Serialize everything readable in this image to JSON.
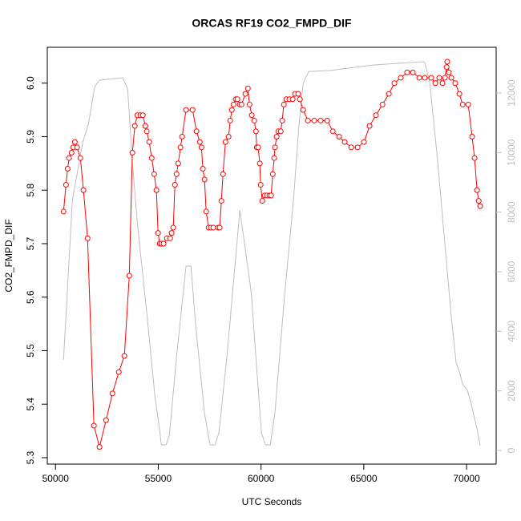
{
  "chart_data": {
    "type": "line",
    "title": "ORCAS RF19 CO2_FMPD_DIF",
    "xlabel": "UTC Seconds",
    "ylabel": "CO2_FMPD_DIF",
    "xlim": [
      49600,
      71440
    ],
    "xticks": [
      50000,
      55000,
      60000,
      65000,
      70000
    ],
    "ylim": [
      5.288,
      6.067
    ],
    "yticks": [
      5.3,
      5.4,
      5.5,
      5.6,
      5.7,
      5.8,
      5.9,
      {
        "value": 6,
        "label": "6.0"
      }
    ],
    "y2lim": [
      -457,
      13534
    ],
    "y2ticks": [
      0,
      2000,
      4000,
      6000,
      8000,
      10000,
      12000
    ],
    "y2color": "#bebebe",
    "series": [
      {
        "color": "#bebebe",
        "axis": "y2",
        "marker": "none",
        "x": [
          50390,
          50820,
          51330,
          51600,
          51910,
          52140,
          53270,
          53510,
          53740,
          53980,
          54480,
          54830,
          55070,
          55150,
          55380,
          55540,
          55890,
          56350,
          56590,
          56820,
          57250,
          57520,
          57760,
          57950,
          58350,
          58970,
          59520,
          60020,
          60220,
          60450,
          60680,
          61150,
          61580,
          61850,
          62050,
          62320,
          63300,
          65440,
          67900,
          67970,
          68210,
          68600,
          69260,
          69490,
          69650,
          69810,
          70040,
          70230,
          70550,
          70660
        ],
        "values": [
          3040,
          8394,
          10358,
          10950,
          12214,
          12430,
          12510,
          12133,
          9712,
          7641,
          4358,
          1856,
          673,
          188,
          188,
          511,
          3148,
          6188,
          6188,
          4197,
          1238,
          188,
          188,
          592,
          3228,
          8071,
          5327,
          592,
          188,
          188,
          1291,
          5246,
          8421,
          10950,
          12322,
          12725,
          12752,
          12940,
          13048,
          13021,
          12349,
          9658,
          4466,
          2959,
          2637,
          2233,
          2018,
          1560,
          592,
          161
        ]
      },
      {
        "color": "#ff0000",
        "marker": "circle",
        "x": [
          50390,
          50510,
          50590,
          50660,
          50780,
          50860,
          50940,
          51050,
          51210,
          51360,
          51560,
          51870,
          52140,
          52460,
          52770,
          53080,
          53350,
          53590,
          53740,
          53860,
          53980,
          54130,
          54250,
          54370,
          54440,
          54560,
          54680,
          54800,
          54910,
          54990,
          55070,
          55150,
          55260,
          55420,
          55580,
          55650,
          55730,
          55810,
          55890,
          55970,
          56080,
          56160,
          56350,
          56670,
          56860,
          57020,
          57100,
          57170,
          57250,
          57330,
          57450,
          57560,
          57680,
          57910,
          57990,
          58070,
          58150,
          58270,
          58420,
          58500,
          58580,
          58660,
          58770,
          58850,
          58970,
          59050,
          59240,
          59360,
          59440,
          59550,
          59670,
          59750,
          59790,
          59860,
          59940,
          59980,
          60060,
          60180,
          60290,
          60410,
          60490,
          60570,
          60640,
          60680,
          60760,
          60840,
          60960,
          61030,
          61110,
          61230,
          61380,
          61540,
          61660,
          61810,
          61890,
          62050,
          62280,
          62590,
          62900,
          63220,
          63490,
          63800,
          64070,
          64390,
          64700,
          65010,
          65280,
          65590,
          65910,
          66220,
          66490,
          66800,
          67110,
          67390,
          67700,
          67970,
          68280,
          68480,
          68670,
          68830,
          68950,
          69030,
          69060,
          69140,
          69260,
          69450,
          69650,
          69810,
          70080,
          70270,
          70390,
          70510,
          70590,
          70660
        ],
        "values": [
          5.76,
          5.81,
          5.84,
          5.86,
          5.87,
          5.88,
          5.89,
          5.88,
          5.86,
          5.8,
          5.71,
          5.36,
          5.32,
          5.37,
          5.42,
          5.46,
          5.49,
          5.64,
          5.87,
          5.92,
          5.94,
          5.94,
          5.94,
          5.92,
          5.91,
          5.89,
          5.86,
          5.83,
          5.8,
          5.72,
          5.7,
          5.7,
          5.7,
          5.71,
          5.71,
          5.72,
          5.73,
          5.81,
          5.83,
          5.85,
          5.88,
          5.9,
          5.95,
          5.95,
          5.91,
          5.89,
          5.88,
          5.84,
          5.82,
          5.76,
          5.73,
          5.73,
          5.73,
          5.73,
          5.73,
          5.78,
          5.83,
          5.89,
          5.9,
          5.93,
          5.95,
          5.96,
          5.97,
          5.97,
          5.96,
          5.96,
          5.98,
          5.99,
          5.96,
          5.94,
          5.93,
          5.91,
          5.88,
          5.88,
          5.85,
          5.81,
          5.78,
          5.79,
          5.79,
          5.79,
          5.79,
          5.83,
          5.86,
          5.88,
          5.9,
          5.91,
          5.91,
          5.93,
          5.96,
          5.97,
          5.97,
          5.97,
          5.98,
          5.98,
          5.97,
          5.95,
          5.93,
          5.93,
          5.93,
          5.93,
          5.91,
          5.9,
          5.89,
          5.88,
          5.88,
          5.89,
          5.92,
          5.94,
          5.96,
          5.98,
          6.0,
          6.01,
          6.02,
          6.02,
          6.01,
          6.01,
          6.01,
          6.0,
          6.01,
          6.0,
          6.01,
          6.03,
          6.04,
          6.02,
          6.01,
          6.0,
          5.98,
          5.96,
          5.96,
          5.9,
          5.86,
          5.8,
          5.78,
          5.77
        ]
      }
    ]
  }
}
